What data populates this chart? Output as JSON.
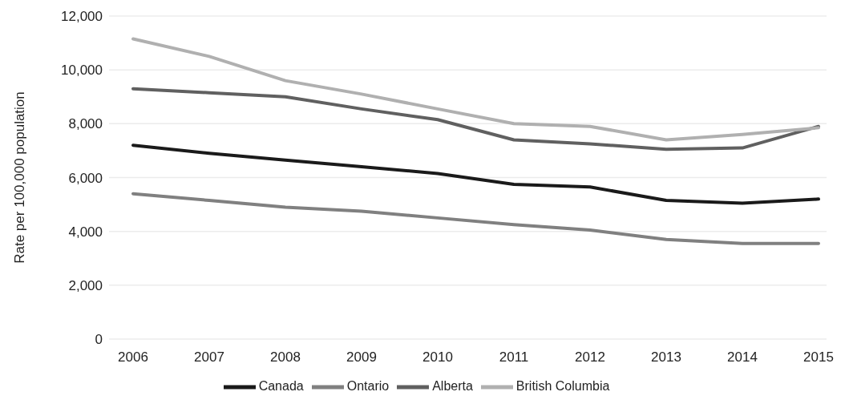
{
  "chart_data": {
    "type": "line",
    "ylabel": "Rate per 100,000 population",
    "categories": [
      "2006",
      "2007",
      "2008",
      "2009",
      "2010",
      "2011",
      "2012",
      "2013",
      "2014",
      "2015"
    ],
    "series": [
      {
        "name": "Canada",
        "color": "#1a1a1a",
        "values": [
          7200,
          6900,
          6650,
          6400,
          6150,
          5750,
          5650,
          5150,
          5050,
          5200
        ]
      },
      {
        "name": "Ontario",
        "color": "#808080",
        "values": [
          5400,
          5150,
          4900,
          4750,
          4500,
          4250,
          4050,
          3700,
          3550,
          3550
        ]
      },
      {
        "name": "Alberta",
        "color": "#606060",
        "values": [
          9300,
          9150,
          9000,
          8550,
          8150,
          7400,
          7250,
          7050,
          7100,
          7900
        ]
      },
      {
        "name": "British Columbia",
        "color": "#b0b0b0",
        "values": [
          11150,
          10500,
          9600,
          9100,
          8550,
          8000,
          7900,
          7400,
          7600,
          7850
        ]
      }
    ],
    "ylim": [
      0,
      12000
    ],
    "yticks": [
      0,
      {
        "value": 2000,
        "label": "2,000"
      },
      {
        "value": 4000,
        "label": "4,000"
      },
      {
        "value": 6000,
        "label": "6,000"
      },
      {
        "value": 8000,
        "label": "8,000"
      },
      {
        "value": 10000,
        "label": "10,000"
      },
      {
        "value": 12000,
        "label": "12,000"
      }
    ],
    "grid": "y",
    "legend": "bottom",
    "marker": "none",
    "line_style": "solid"
  }
}
